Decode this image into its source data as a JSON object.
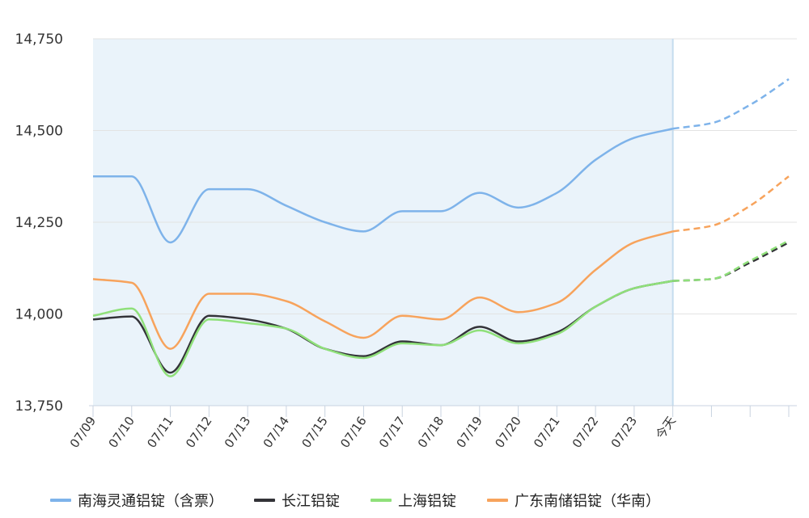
{
  "chart_data": {
    "type": "line",
    "categories": [
      "07/09",
      "07/10",
      "07/11",
      "07/12",
      "07/13",
      "07/14",
      "07/15",
      "07/16",
      "07/17",
      "07/18",
      "07/19",
      "07/20",
      "07/21",
      "07/22",
      "07/23",
      "今天",
      "",
      "",
      ""
    ],
    "ylim": [
      13750,
      14750
    ],
    "yticks": [
      13750,
      14000,
      14250,
      14500,
      14750
    ],
    "ytick_labels": [
      "13,750",
      "14,000",
      "14,250",
      "14,500",
      "14,750"
    ],
    "grid": true,
    "legend_position": "bottom",
    "history_shaded_until": "今天",
    "forecast_after": "今天",
    "series": [
      {
        "name": "南海灵通铝锭（含票）",
        "color": "#7eb3ea",
        "values": [
          14375,
          14375,
          14195,
          14340,
          14340,
          14295,
          14250,
          14225,
          14280,
          14280,
          14330,
          14290,
          14330,
          14420,
          14480,
          14505,
          14520,
          14570,
          14640
        ]
      },
      {
        "name": "长江铝锭",
        "color": "#333338",
        "values": [
          13985,
          13993,
          13840,
          13995,
          13985,
          13960,
          13905,
          13885,
          13925,
          13915,
          13965,
          13925,
          13950,
          14020,
          14070,
          14090,
          14095,
          14140,
          14195
        ]
      },
      {
        "name": "上海铝锭",
        "color": "#8fe07a",
        "values": [
          13995,
          14015,
          13830,
          13985,
          13975,
          13960,
          13905,
          13880,
          13920,
          13915,
          13955,
          13920,
          13945,
          14020,
          14070,
          14090,
          14095,
          14145,
          14200
        ]
      },
      {
        "name": "广东南储铝锭（华南）",
        "color": "#f7a35c",
        "values": [
          14095,
          14085,
          13905,
          14055,
          14055,
          14035,
          13980,
          13935,
          13995,
          13985,
          14045,
          14005,
          14030,
          14120,
          14195,
          14225,
          14240,
          14295,
          14375
        ]
      }
    ]
  },
  "colors": {
    "shade": "#eaf3fa",
    "today_line": "#c5dcee",
    "grid": "#e3e3e3",
    "axis": "#c8d3e0"
  }
}
